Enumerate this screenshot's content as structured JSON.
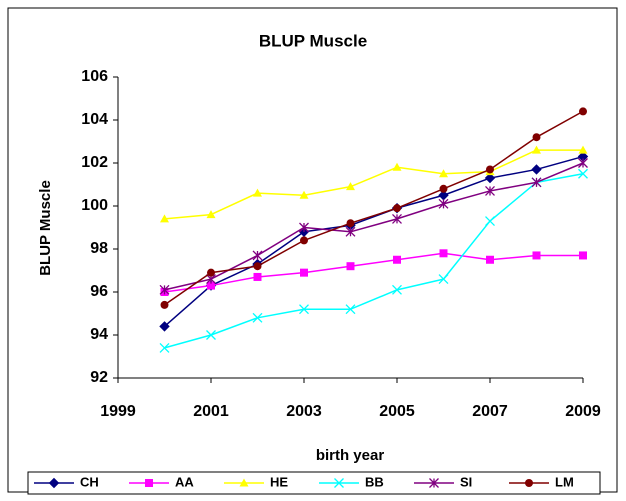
{
  "chart_data": {
    "type": "line",
    "title": "BLUP Muscle",
    "x_label": "birth year",
    "y_label": "BLUP Muscle",
    "x": [
      2000,
      2001,
      2002,
      2003,
      2004,
      2005,
      2006,
      2007,
      2008,
      2009
    ],
    "xlim": [
      1999,
      2009
    ],
    "xticks": [
      1999,
      2001,
      2003,
      2005,
      2007,
      2009
    ],
    "ylim": [
      92,
      106
    ],
    "yticks": [
      92,
      94,
      96,
      98,
      100,
      102,
      104,
      106
    ],
    "grid": false,
    "legend": "bottom",
    "series": [
      {
        "name": "CH",
        "color": "#000080",
        "marker": "diamond",
        "values": [
          94.4,
          96.3,
          97.3,
          98.8,
          99.1,
          99.9,
          100.5,
          101.3,
          101.7,
          102.3
        ]
      },
      {
        "name": "AA",
        "color": "#ff00ff",
        "marker": "square",
        "values": [
          96.0,
          96.3,
          96.7,
          96.9,
          97.2,
          97.5,
          97.8,
          97.5,
          97.7,
          97.7
        ]
      },
      {
        "name": "HE",
        "color": "#ffff00",
        "marker": "triangle",
        "values": [
          99.4,
          99.6,
          100.6,
          100.5,
          100.9,
          101.8,
          101.5,
          101.6,
          102.6,
          102.6
        ]
      },
      {
        "name": "BB",
        "color": "#00ffff",
        "marker": "x",
        "values": [
          93.4,
          94.0,
          94.8,
          95.2,
          95.2,
          96.1,
          96.6,
          99.3,
          101.1,
          101.5
        ]
      },
      {
        "name": "SI",
        "color": "#800080",
        "marker": "star",
        "values": [
          96.1,
          96.6,
          97.7,
          99.0,
          98.8,
          99.4,
          100.1,
          100.7,
          101.1,
          102.0
        ]
      },
      {
        "name": "LM",
        "color": "#800000",
        "marker": "circle",
        "values": [
          95.4,
          96.9,
          97.2,
          98.4,
          99.2,
          99.9,
          100.8,
          101.7,
          103.2,
          104.4
        ]
      }
    ]
  }
}
